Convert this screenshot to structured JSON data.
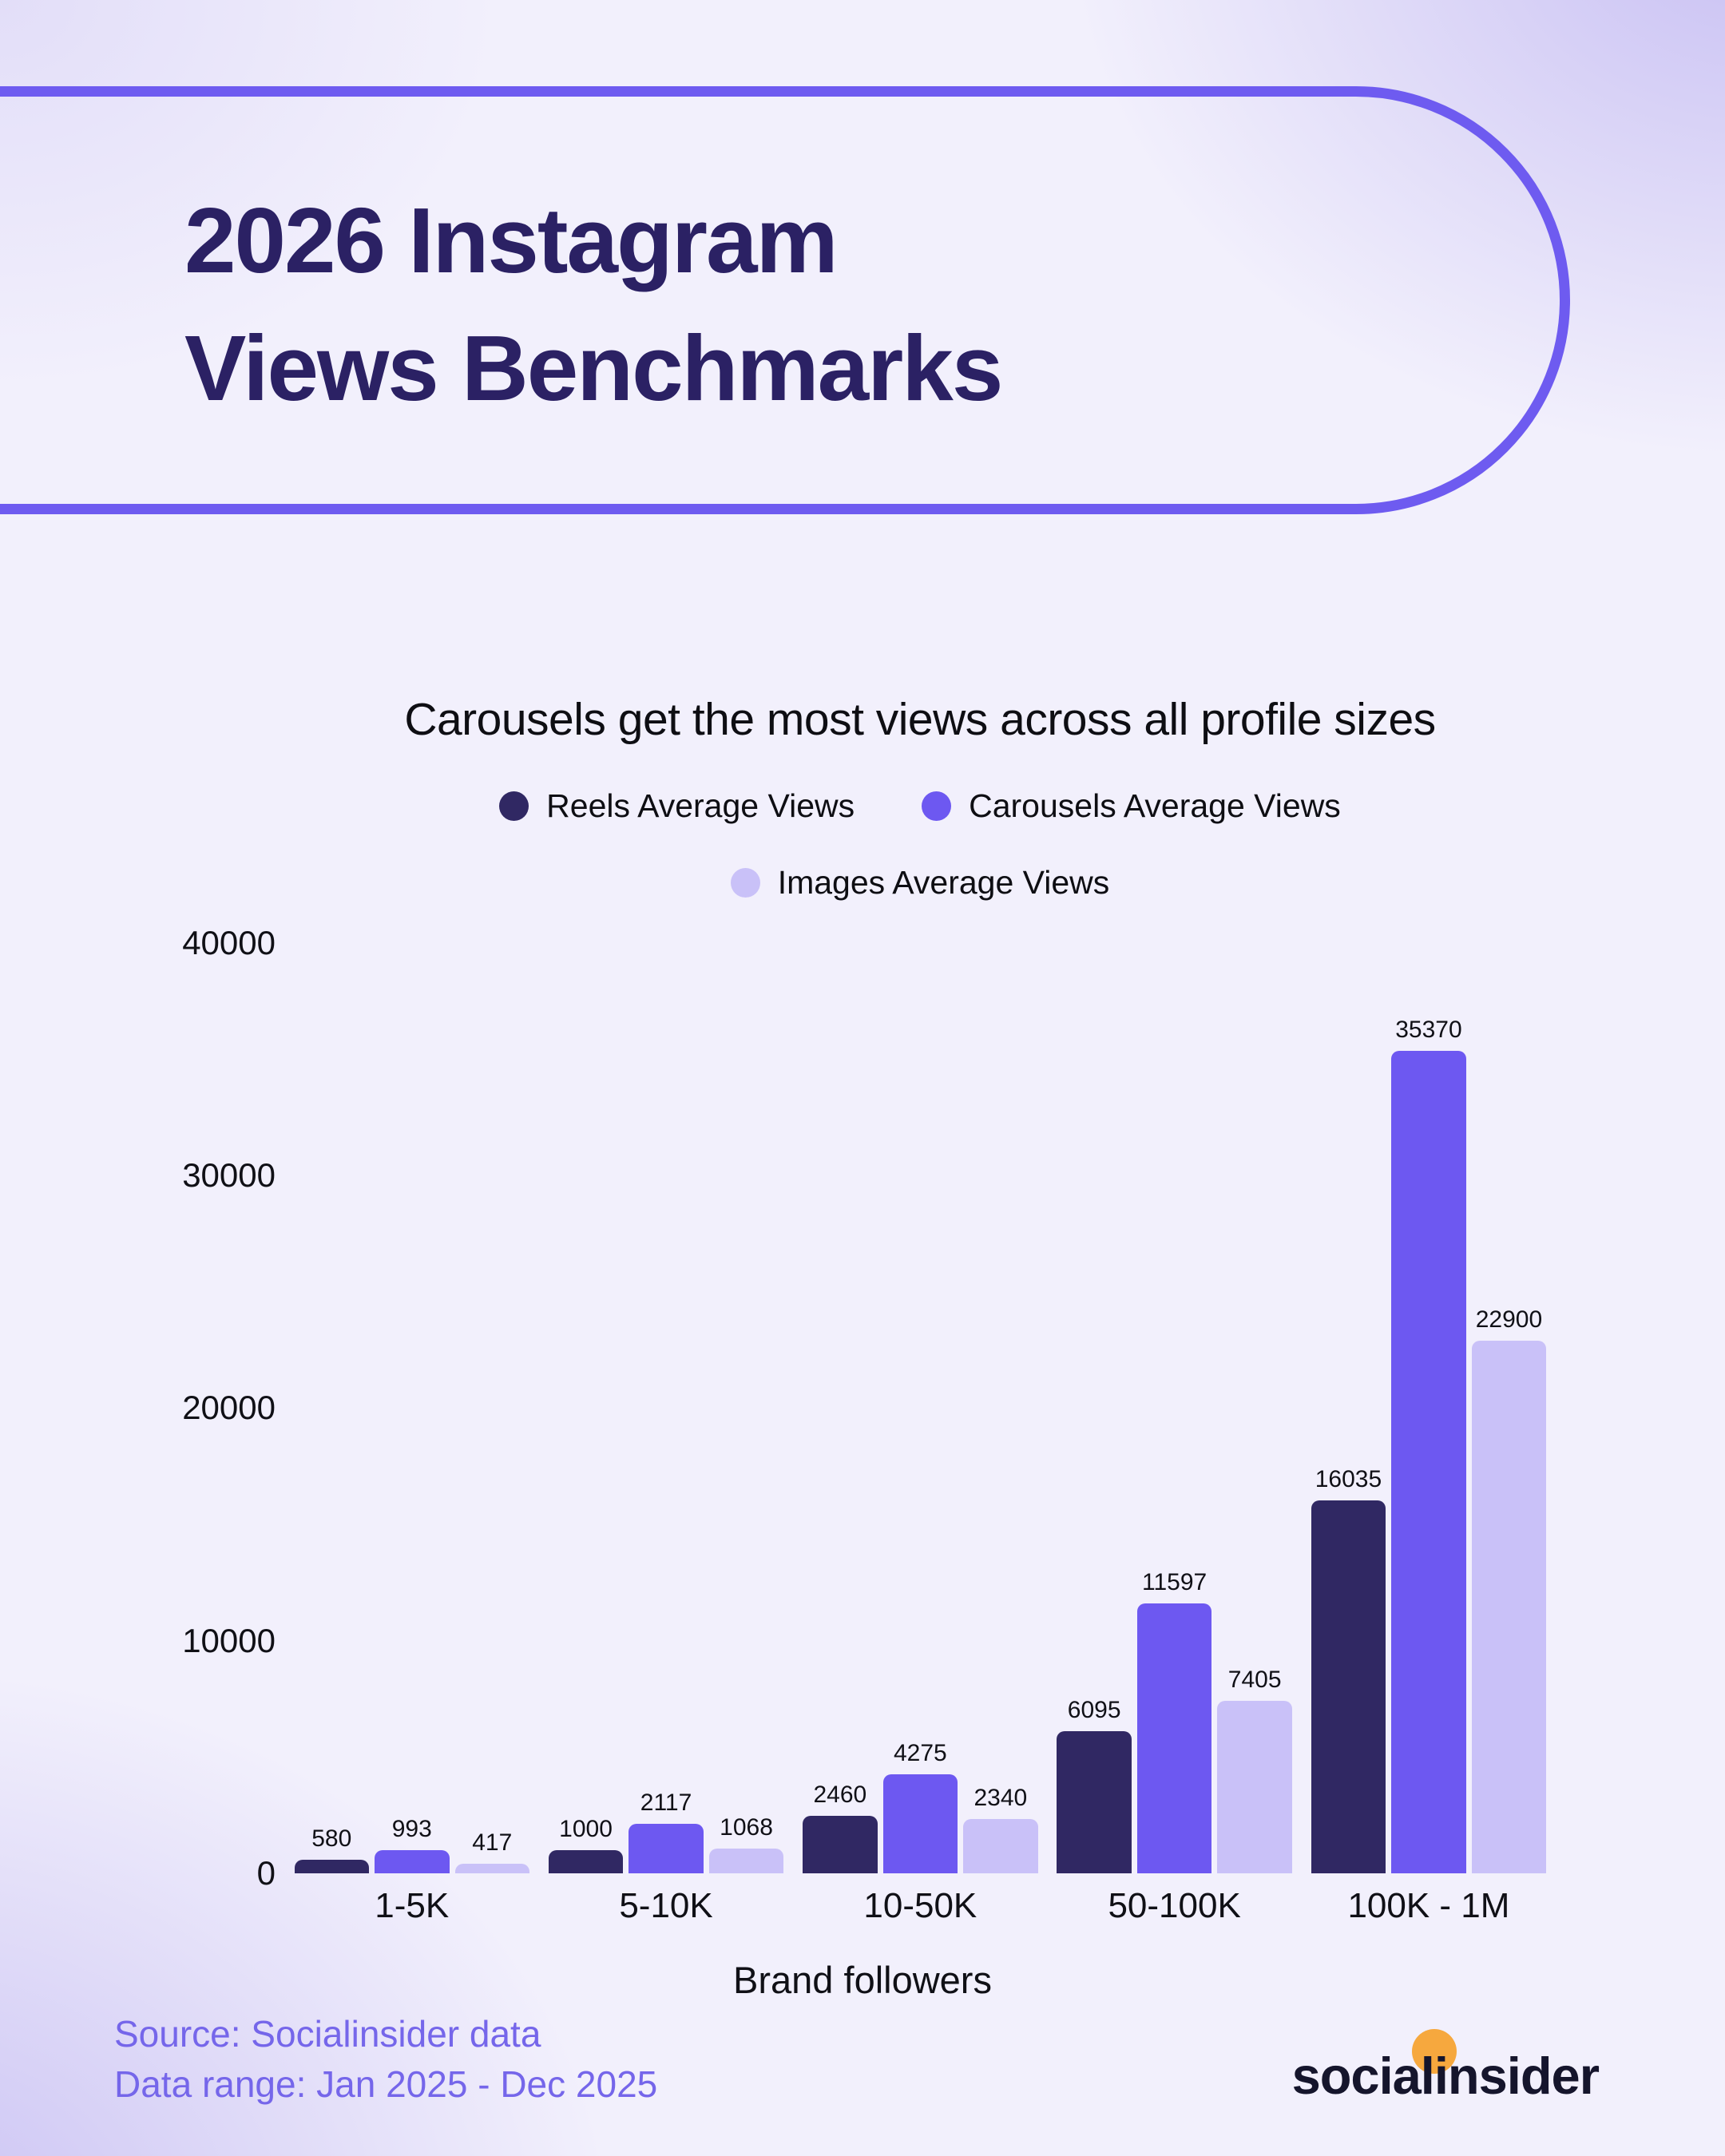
{
  "header": {
    "title_line1": "2026 Instagram",
    "title_line2": "Views Benchmarks"
  },
  "chart_data": {
    "type": "bar",
    "title": "Carousels get the most views across all profile sizes",
    "categories": [
      "1-5K",
      "5-10K",
      "10-50K",
      "50-100K",
      "100K - 1M"
    ],
    "series": [
      {
        "name": "Reels Average Views",
        "color": "#302863",
        "values": [
          580,
          1000,
          2460,
          6095,
          16035
        ]
      },
      {
        "name": "Carousels Average Views",
        "color": "#6d58f1",
        "values": [
          993,
          2117,
          4275,
          11597,
          35370
        ]
      },
      {
        "name": "Images Average Views",
        "color": "#c9c1f8",
        "values": [
          417,
          1068,
          2340,
          7405,
          22900
        ]
      }
    ],
    "xlabel": "Brand followers",
    "ylabel": "",
    "ylim": [
      0,
      40000
    ],
    "y_ticks": [
      40000,
      30000,
      20000,
      10000,
      0
    ],
    "grid": false,
    "legend_position": "top",
    "value_labels": true
  },
  "footer": {
    "source": "Source: Socialinsider data",
    "range": "Data range: Jan 2025 - Dec 2025"
  },
  "logo": {
    "part1": "socia",
    "part2": "li",
    "part3": "nsider"
  },
  "colors": {
    "accent_border": "#6e5bf0",
    "title_text": "#2b2164",
    "footer_text": "#7566ea",
    "logo_orange": "#f6a83e"
  }
}
